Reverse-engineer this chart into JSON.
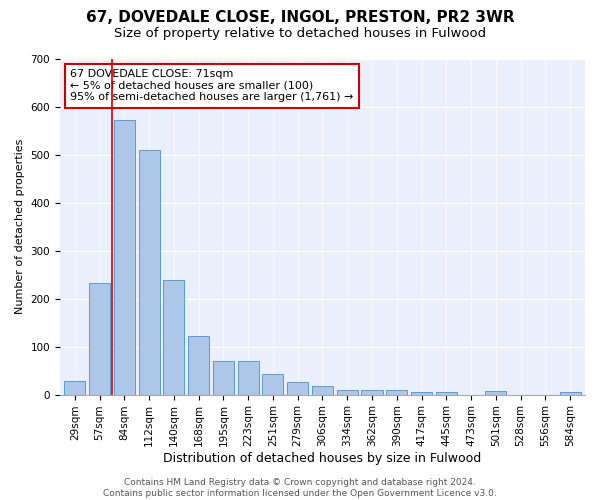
{
  "title": "67, DOVEDALE CLOSE, INGOL, PRESTON, PR2 3WR",
  "subtitle": "Size of property relative to detached houses in Fulwood",
  "xlabel": "Distribution of detached houses by size in Fulwood",
  "ylabel": "Number of detached properties",
  "categories": [
    "29sqm",
    "57sqm",
    "84sqm",
    "112sqm",
    "140sqm",
    "168sqm",
    "195sqm",
    "223sqm",
    "251sqm",
    "279sqm",
    "306sqm",
    "334sqm",
    "362sqm",
    "390sqm",
    "417sqm",
    "445sqm",
    "473sqm",
    "501sqm",
    "528sqm",
    "556sqm",
    "584sqm"
  ],
  "values": [
    28,
    232,
    572,
    510,
    240,
    122,
    70,
    70,
    44,
    27,
    17,
    10,
    10,
    10,
    6,
    5,
    0,
    8,
    0,
    0,
    6
  ],
  "bar_color": "#aec6e8",
  "bar_edge_color": "#5b9bd5",
  "vline_x": 1.5,
  "vline_color": "#cc0000",
  "annotation_text": "67 DOVEDALE CLOSE: 71sqm\n← 5% of detached houses are smaller (100)\n95% of semi-detached houses are larger (1,761) →",
  "annotation_box_color": "#ffffff",
  "annotation_box_edge": "#cc0000",
  "ylim": [
    0,
    700
  ],
  "yticks": [
    0,
    100,
    200,
    300,
    400,
    500,
    600,
    700
  ],
  "background_color": "#eaf0fb",
  "footer_text": "Contains HM Land Registry data © Crown copyright and database right 2024.\nContains public sector information licensed under the Open Government Licence v3.0.",
  "title_fontsize": 11,
  "subtitle_fontsize": 9.5,
  "xlabel_fontsize": 9,
  "ylabel_fontsize": 8,
  "tick_fontsize": 7.5,
  "footer_fontsize": 6.5
}
